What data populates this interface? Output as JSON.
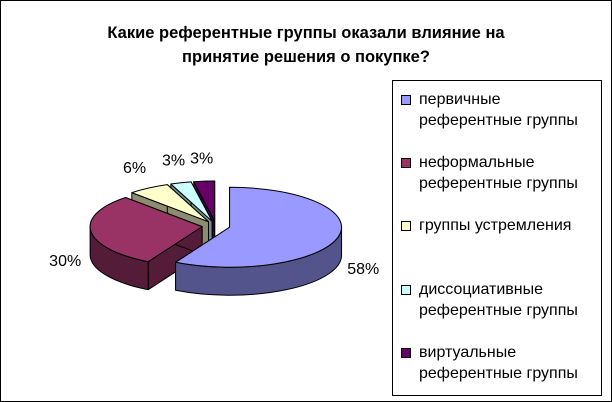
{
  "chart_data": {
    "type": "pie3d",
    "title": "Какие референтные группы оказали влияние на принятие решения о покупке?",
    "categories": [
      "первичные референтные группы",
      "неформальные референтные группы",
      "группы устремления",
      "диссоциативные референтные группы",
      "виртуальные референтные группы"
    ],
    "values": [
      58,
      30,
      6,
      3,
      3
    ],
    "value_labels": [
      "58%",
      "30%",
      "6%",
      "3%",
      "3%"
    ],
    "colors": [
      "#9999ff",
      "#993366",
      "#ffffcc",
      "#ccffff",
      "#660066"
    ],
    "legend": "right"
  }
}
